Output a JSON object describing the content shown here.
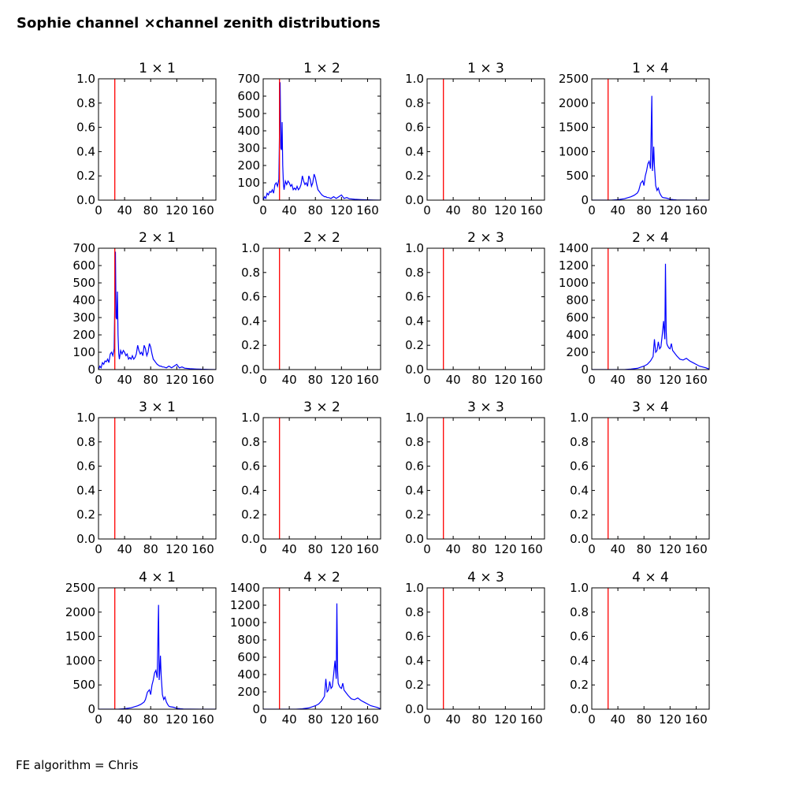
{
  "title": "Sophie channel ×channel zenith distributions",
  "footnote": "FE algorithm = Chris",
  "colors": {
    "line": "#0000ff",
    "marker": "#ff0000",
    "axes": "#000000"
  },
  "chart_data": [
    {
      "type": "line",
      "title": "1 × 1",
      "xlim": [
        0,
        180
      ],
      "ylim": [
        0,
        1
      ],
      "xticks": [
        "0",
        "40",
        "80",
        "120",
        "160"
      ],
      "yticks": [
        "0.0",
        "0.2",
        "0.4",
        "0.6",
        "0.8",
        "1.0"
      ],
      "marker_x": 25,
      "series": []
    },
    {
      "type": "line",
      "title": "1 × 2",
      "xlim": [
        0,
        180
      ],
      "ylim": [
        0,
        700
      ],
      "xticks": [
        "0",
        "40",
        "80",
        "120",
        "160"
      ],
      "yticks": [
        "0",
        "100",
        "200",
        "300",
        "400",
        "500",
        "600",
        "700"
      ],
      "marker_x": 25,
      "series": [
        {
          "x": [
            0,
            2,
            4,
            6,
            8,
            10,
            12,
            14,
            16,
            18,
            20,
            22,
            24,
            26,
            27,
            28,
            29,
            30,
            31,
            32,
            34,
            36,
            38,
            40,
            42,
            44,
            46,
            48,
            50,
            52,
            54,
            56,
            58,
            60,
            62,
            64,
            66,
            68,
            70,
            72,
            74,
            76,
            78,
            80,
            82,
            84,
            86,
            88,
            90,
            92,
            94,
            96,
            98,
            100,
            104,
            108,
            112,
            116,
            120,
            124,
            128,
            132,
            140,
            150,
            160,
            170,
            180
          ],
          "y": [
            0,
            20,
            10,
            40,
            30,
            50,
            45,
            60,
            40,
            90,
            100,
            80,
            120,
            680,
            300,
            290,
            450,
            200,
            90,
            60,
            110,
            90,
            110,
            100,
            80,
            90,
            60,
            70,
            60,
            80,
            60,
            70,
            90,
            140,
            110,
            90,
            100,
            80,
            140,
            120,
            80,
            100,
            150,
            130,
            90,
            60,
            50,
            40,
            30,
            25,
            20,
            20,
            15,
            15,
            10,
            20,
            10,
            20,
            30,
            10,
            15,
            8,
            5,
            3,
            2,
            1,
            0
          ]
        }
      ]
    },
    {
      "type": "line",
      "title": "1 × 3",
      "xlim": [
        0,
        180
      ],
      "ylim": [
        0,
        1
      ],
      "xticks": [
        "0",
        "40",
        "80",
        "120",
        "160"
      ],
      "yticks": [
        "0.0",
        "0.2",
        "0.4",
        "0.6",
        "0.8",
        "1.0"
      ],
      "marker_x": 25,
      "series": []
    },
    {
      "type": "line",
      "title": "1 × 4",
      "xlim": [
        0,
        180
      ],
      "ylim": [
        0,
        2500
      ],
      "xticks": [
        "0",
        "40",
        "80",
        "120",
        "160"
      ],
      "yticks": [
        "0",
        "500",
        "1000",
        "1500",
        "2000",
        "2500"
      ],
      "marker_x": 25,
      "series": [
        {
          "x": [
            0,
            30,
            40,
            50,
            55,
            60,
            65,
            70,
            72,
            75,
            78,
            80,
            82,
            84,
            86,
            88,
            90,
            92,
            93,
            94,
            95,
            96,
            97,
            98,
            100,
            102,
            104,
            106,
            108,
            110,
            115,
            120,
            125,
            130,
            140,
            160,
            180
          ],
          "y": [
            0,
            0,
            10,
            30,
            50,
            70,
            100,
            150,
            200,
            350,
            400,
            300,
            500,
            600,
            750,
            800,
            650,
            2150,
            600,
            800,
            1100,
            700,
            500,
            300,
            200,
            250,
            150,
            100,
            60,
            50,
            40,
            20,
            10,
            5,
            2,
            0,
            0
          ]
        }
      ]
    },
    {
      "type": "line",
      "title": "2 × 1",
      "xlim": [
        0,
        180
      ],
      "ylim": [
        0,
        700
      ],
      "xticks": [
        "0",
        "40",
        "80",
        "120",
        "160"
      ],
      "yticks": [
        "0",
        "100",
        "200",
        "300",
        "400",
        "500",
        "600",
        "700"
      ],
      "marker_x": 25,
      "series": [
        {
          "x": [
            0,
            2,
            4,
            6,
            8,
            10,
            12,
            14,
            16,
            18,
            20,
            22,
            24,
            26,
            27,
            28,
            29,
            30,
            31,
            32,
            34,
            36,
            38,
            40,
            42,
            44,
            46,
            48,
            50,
            52,
            54,
            56,
            58,
            60,
            62,
            64,
            66,
            68,
            70,
            72,
            74,
            76,
            78,
            80,
            82,
            84,
            86,
            88,
            90,
            92,
            94,
            96,
            98,
            100,
            104,
            108,
            112,
            116,
            120,
            124,
            128,
            132,
            140,
            150,
            160,
            170,
            180
          ],
          "y": [
            0,
            20,
            10,
            40,
            30,
            50,
            45,
            60,
            40,
            90,
            100,
            80,
            120,
            680,
            300,
            290,
            450,
            200,
            90,
            60,
            110,
            90,
            110,
            100,
            80,
            90,
            60,
            70,
            60,
            80,
            60,
            70,
            90,
            140,
            110,
            90,
            100,
            80,
            140,
            120,
            80,
            100,
            150,
            130,
            90,
            60,
            50,
            40,
            30,
            25,
            20,
            20,
            15,
            15,
            10,
            20,
            10,
            20,
            30,
            10,
            15,
            8,
            5,
            3,
            2,
            1,
            0
          ]
        }
      ]
    },
    {
      "type": "line",
      "title": "2 × 2",
      "xlim": [
        0,
        180
      ],
      "ylim": [
        0,
        1
      ],
      "xticks": [
        "0",
        "40",
        "80",
        "120",
        "160"
      ],
      "yticks": [
        "0.0",
        "0.2",
        "0.4",
        "0.6",
        "0.8",
        "1.0"
      ],
      "marker_x": 25,
      "series": []
    },
    {
      "type": "line",
      "title": "2 × 3",
      "xlim": [
        0,
        180
      ],
      "ylim": [
        0,
        1
      ],
      "xticks": [
        "0",
        "40",
        "80",
        "120",
        "160"
      ],
      "yticks": [
        "0.0",
        "0.2",
        "0.4",
        "0.6",
        "0.8",
        "1.0"
      ],
      "marker_x": 25,
      "series": []
    },
    {
      "type": "line",
      "title": "2 × 4",
      "xlim": [
        0,
        180
      ],
      "ylim": [
        0,
        1400
      ],
      "xticks": [
        "0",
        "40",
        "80",
        "120",
        "160"
      ],
      "yticks": [
        "0",
        "200",
        "400",
        "600",
        "800",
        "1000",
        "1200",
        "1400"
      ],
      "marker_x": 25,
      "series": [
        {
          "x": [
            0,
            50,
            60,
            70,
            80,
            85,
            90,
            94,
            96,
            98,
            100,
            102,
            104,
            106,
            108,
            110,
            112,
            113,
            114,
            115,
            116,
            118,
            120,
            122,
            124,
            126,
            128,
            130,
            135,
            140,
            145,
            150,
            155,
            160,
            165,
            170,
            175,
            180
          ],
          "y": [
            0,
            0,
            5,
            15,
            40,
            60,
            100,
            150,
            350,
            200,
            220,
            320,
            240,
            260,
            400,
            560,
            350,
            1220,
            450,
            300,
            280,
            250,
            240,
            300,
            220,
            200,
            180,
            160,
            120,
            110,
            130,
            100,
            80,
            60,
            40,
            30,
            20,
            5
          ]
        }
      ]
    },
    {
      "type": "line",
      "title": "3 × 1",
      "xlim": [
        0,
        180
      ],
      "ylim": [
        0,
        1
      ],
      "xticks": [
        "0",
        "40",
        "80",
        "120",
        "160"
      ],
      "yticks": [
        "0.0",
        "0.2",
        "0.4",
        "0.6",
        "0.8",
        "1.0"
      ],
      "marker_x": 25,
      "series": []
    },
    {
      "type": "line",
      "title": "3 × 2",
      "xlim": [
        0,
        180
      ],
      "ylim": [
        0,
        1
      ],
      "xticks": [
        "0",
        "40",
        "80",
        "120",
        "160"
      ],
      "yticks": [
        "0.0",
        "0.2",
        "0.4",
        "0.6",
        "0.8",
        "1.0"
      ],
      "marker_x": 25,
      "series": []
    },
    {
      "type": "line",
      "title": "3 × 3",
      "xlim": [
        0,
        180
      ],
      "ylim": [
        0,
        1
      ],
      "xticks": [
        "0",
        "40",
        "80",
        "120",
        "160"
      ],
      "yticks": [
        "0.0",
        "0.2",
        "0.4",
        "0.6",
        "0.8",
        "1.0"
      ],
      "marker_x": 25,
      "series": []
    },
    {
      "type": "line",
      "title": "3 × 4",
      "xlim": [
        0,
        180
      ],
      "ylim": [
        0,
        1
      ],
      "xticks": [
        "0",
        "40",
        "80",
        "120",
        "160"
      ],
      "yticks": [
        "0.0",
        "0.2",
        "0.4",
        "0.6",
        "0.8",
        "1.0"
      ],
      "marker_x": 25,
      "series": []
    },
    {
      "type": "line",
      "title": "4 × 1",
      "xlim": [
        0,
        180
      ],
      "ylim": [
        0,
        2500
      ],
      "xticks": [
        "0",
        "40",
        "80",
        "120",
        "160"
      ],
      "yticks": [
        "0",
        "500",
        "1000",
        "1500",
        "2000",
        "2500"
      ],
      "marker_x": 25,
      "series": [
        {
          "x": [
            0,
            30,
            40,
            50,
            55,
            60,
            65,
            70,
            72,
            75,
            78,
            80,
            82,
            84,
            86,
            88,
            90,
            92,
            93,
            94,
            95,
            96,
            97,
            98,
            100,
            102,
            104,
            106,
            108,
            110,
            115,
            120,
            125,
            130,
            140,
            160,
            180
          ],
          "y": [
            0,
            0,
            10,
            30,
            50,
            70,
            100,
            150,
            200,
            350,
            400,
            300,
            500,
            600,
            750,
            800,
            650,
            2150,
            600,
            800,
            1100,
            700,
            500,
            300,
            200,
            250,
            150,
            100,
            60,
            50,
            40,
            20,
            10,
            5,
            2,
            0,
            0
          ]
        }
      ]
    },
    {
      "type": "line",
      "title": "4 × 2",
      "xlim": [
        0,
        180
      ],
      "ylim": [
        0,
        1400
      ],
      "xticks": [
        "0",
        "40",
        "80",
        "120",
        "160"
      ],
      "yticks": [
        "0",
        "200",
        "400",
        "600",
        "800",
        "1000",
        "1200",
        "1400"
      ],
      "marker_x": 25,
      "series": [
        {
          "x": [
            0,
            50,
            60,
            70,
            80,
            85,
            90,
            94,
            96,
            98,
            100,
            102,
            104,
            106,
            108,
            110,
            112,
            113,
            114,
            115,
            116,
            118,
            120,
            122,
            124,
            126,
            128,
            130,
            135,
            140,
            145,
            150,
            155,
            160,
            165,
            170,
            175,
            180
          ],
          "y": [
            0,
            0,
            5,
            15,
            40,
            60,
            100,
            150,
            350,
            200,
            220,
            320,
            240,
            260,
            400,
            560,
            350,
            1220,
            450,
            300,
            280,
            250,
            240,
            300,
            220,
            200,
            180,
            160,
            120,
            110,
            130,
            100,
            80,
            60,
            40,
            30,
            20,
            5
          ]
        }
      ]
    },
    {
      "type": "line",
      "title": "4 × 3",
      "xlim": [
        0,
        180
      ],
      "ylim": [
        0,
        1
      ],
      "xticks": [
        "0",
        "40",
        "80",
        "120",
        "160"
      ],
      "yticks": [
        "0.0",
        "0.2",
        "0.4",
        "0.6",
        "0.8",
        "1.0"
      ],
      "marker_x": 25,
      "series": []
    },
    {
      "type": "line",
      "title": "4 × 4",
      "xlim": [
        0,
        180
      ],
      "ylim": [
        0,
        1
      ],
      "xticks": [
        "0",
        "40",
        "80",
        "120",
        "160"
      ],
      "yticks": [
        "0.0",
        "0.2",
        "0.4",
        "0.6",
        "0.8",
        "1.0"
      ],
      "marker_x": 25,
      "series": []
    }
  ]
}
